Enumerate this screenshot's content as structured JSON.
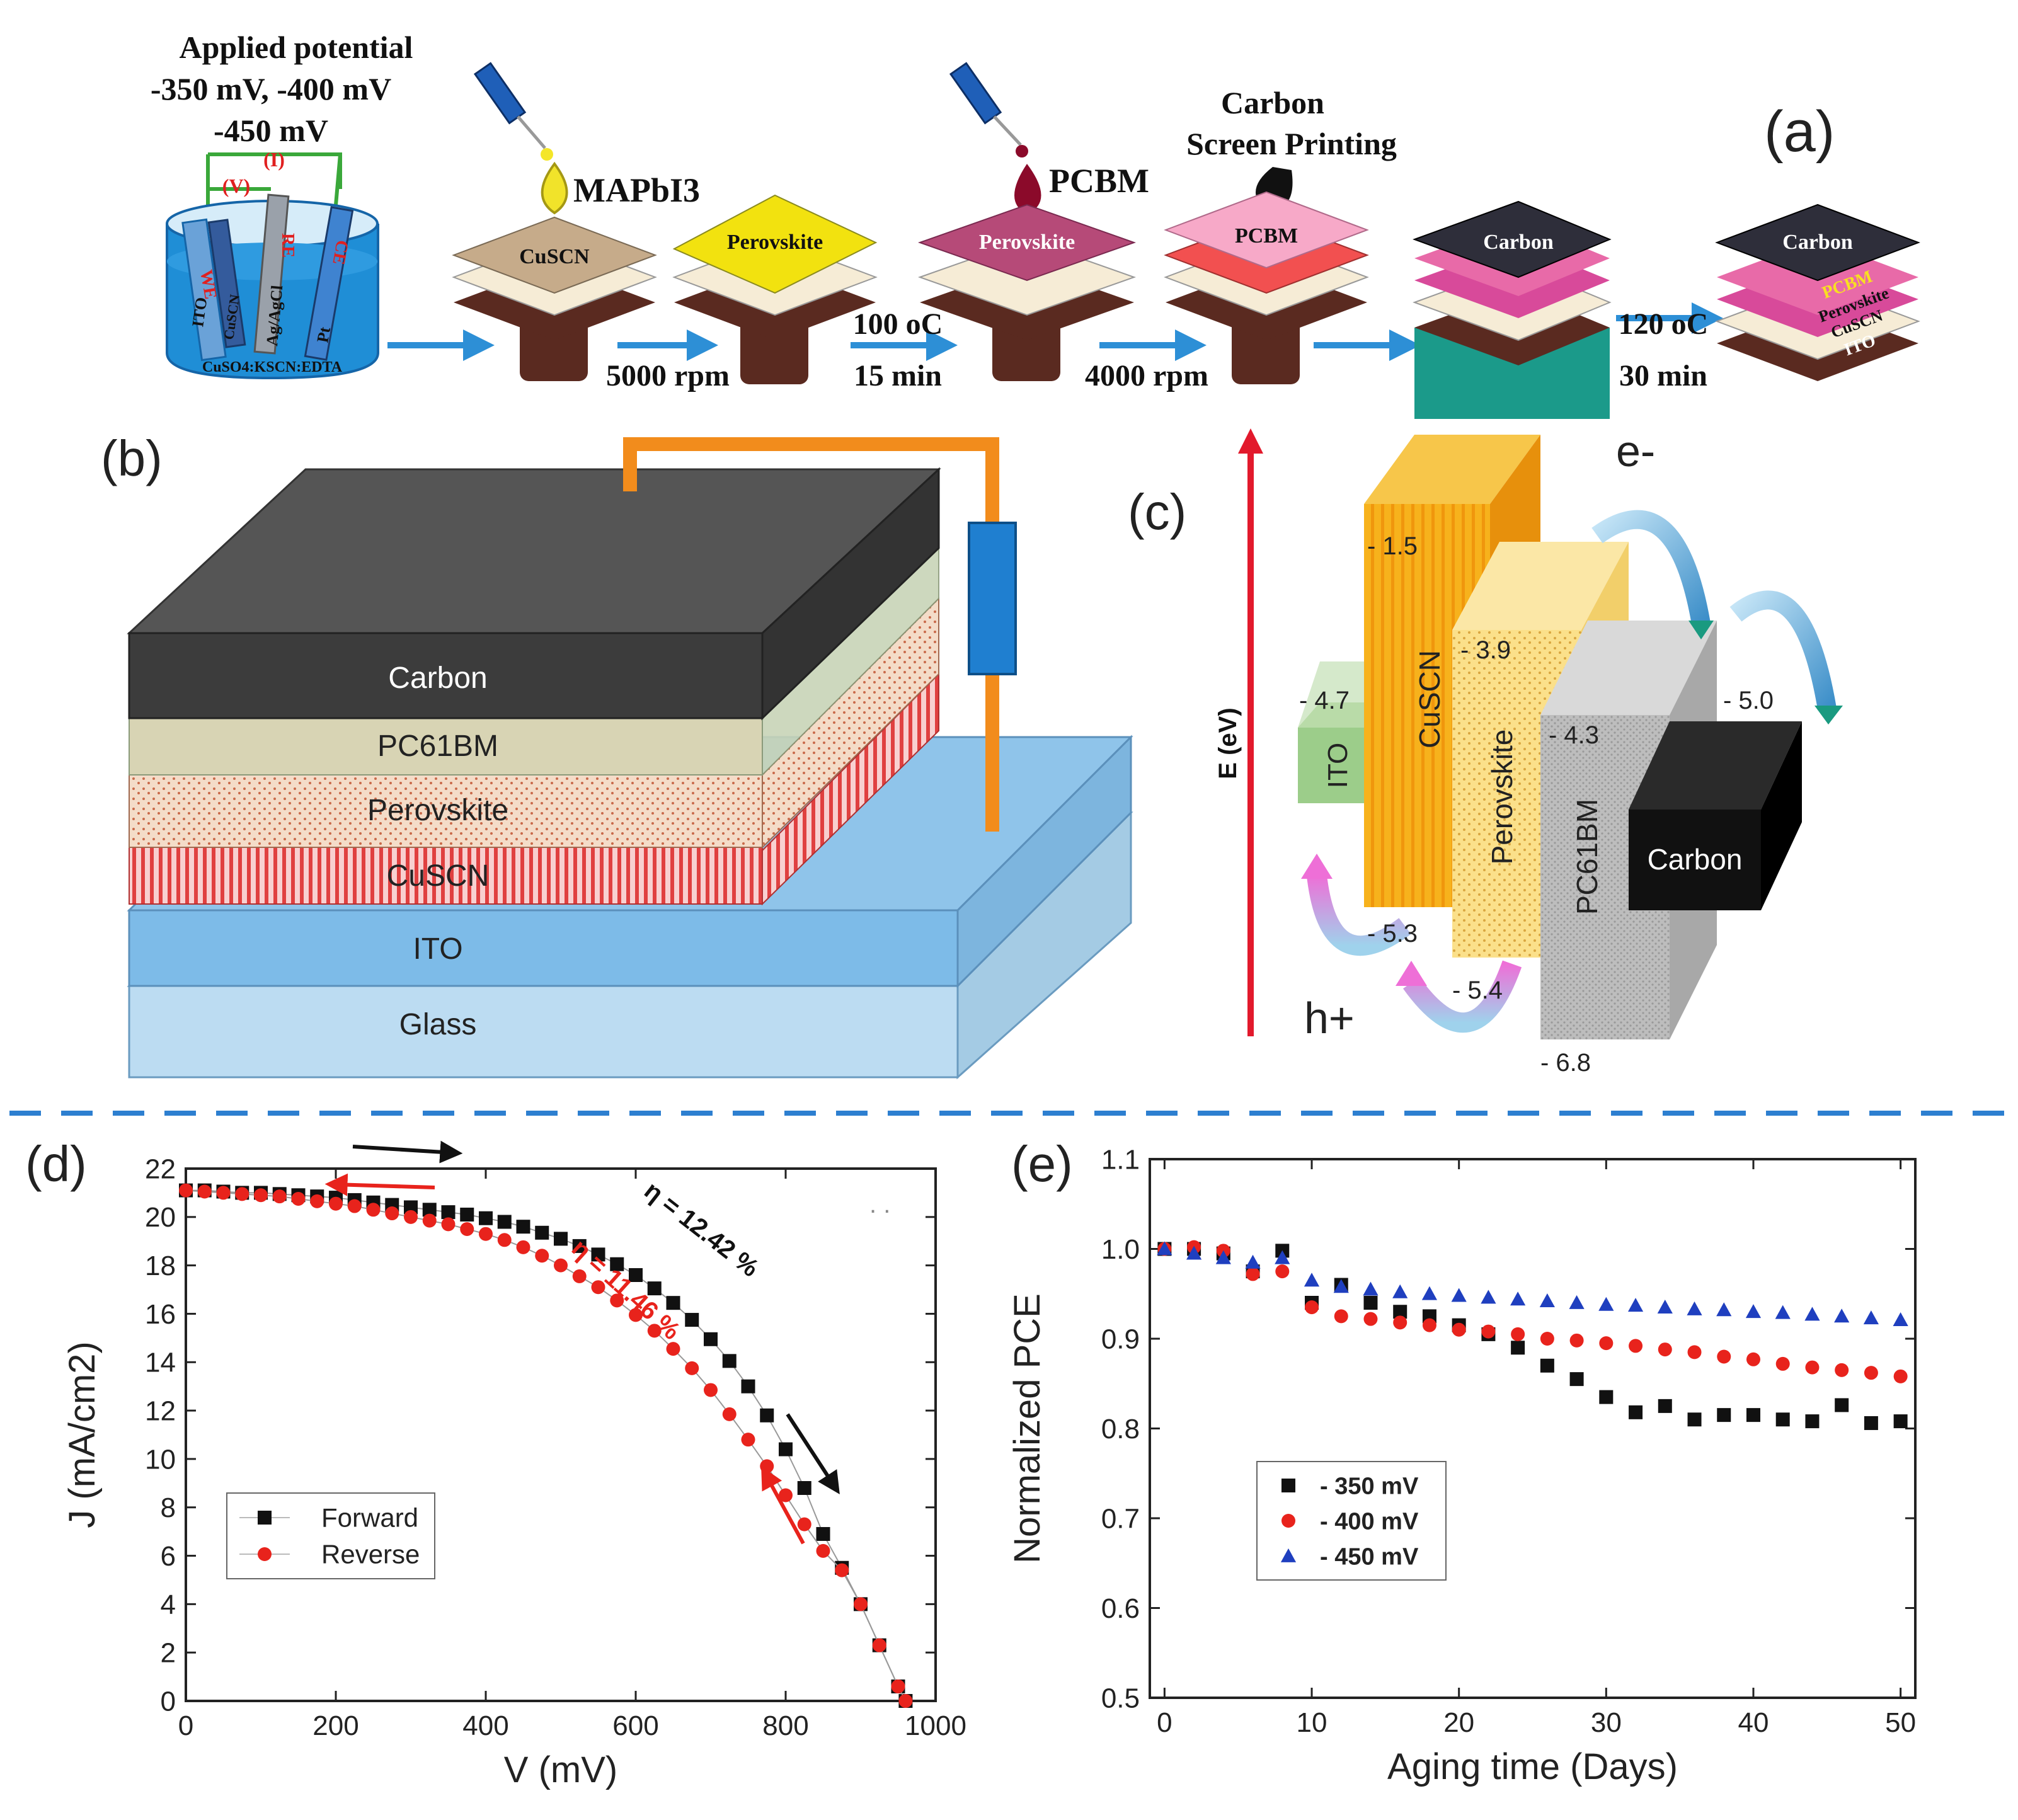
{
  "panel_a": {
    "label": "(a)",
    "applied_potential_title": "Applied potential",
    "potential_line1": "-350 mV, -400 mV",
    "potential_line2": "-450 mV",
    "circuit_current": "(I)",
    "circuit_voltage": "(V)",
    "electrode_we": "WE",
    "electrode_re": "RE",
    "electrode_ce": "CE",
    "label_ito": "ITO",
    "label_cuscn_film": "CuSCN",
    "label_agagcl": "Ag/AgCl",
    "label_pt": "Pt",
    "electrolyte": "CuSO4:KSCN:EDTA",
    "mapbi3": "MAPbI3",
    "pcbm": "PCBM",
    "carbon_title_line1": "Carbon",
    "carbon_title_line2": "Screen Printing",
    "stack1_top": "CuSCN",
    "stack2_top": "Perovskite",
    "stack3_top": "Perovskite",
    "stack4_top": "PCBM",
    "stack5_top": "Carbon",
    "final_stack_top": "Carbon",
    "final_stack_layers": [
      "PCBM",
      "Perovskite",
      "CuSCN",
      "ITO"
    ],
    "step1_speed": "5000 rpm",
    "step2_temp": "100 oC",
    "step2_time": "15 min",
    "step3_speed": "4000 rpm",
    "step4_temp": "120 oC",
    "step4_time": "30 min"
  },
  "panel_b": {
    "label": "(b)",
    "layers": [
      "Carbon",
      "PC61BM",
      "Perovskite",
      "CuSCN",
      "ITO",
      "Glass"
    ]
  },
  "panel_c": {
    "label": "(c)",
    "axis_label": "E (eV)",
    "electron": "e-",
    "hole": "h+",
    "materials": [
      "ITO",
      "CuSCN",
      "Perovskite",
      "PC61BM",
      "Carbon"
    ],
    "levels": [
      "- 1.5",
      "- 3.9",
      "- 4.3",
      "- 4.7",
      "- 5.0",
      "- 5.3",
      "- 5.4",
      "- 6.8"
    ]
  },
  "panel_d": {
    "label": "(d)",
    "eta_forward": "η = 12.42 %",
    "eta_reverse": "η = 11.46 %",
    "dots": ". ."
  },
  "panel_e": {
    "label": "(e)"
  },
  "chart_data": [
    {
      "type": "scatter",
      "title": "",
      "xlabel": "V (mV)",
      "ylabel": "J (mA/cm2)",
      "xlim": [
        0,
        1000
      ],
      "ylim": [
        0,
        22
      ],
      "xticks": [
        0,
        200,
        400,
        600,
        800,
        1000
      ],
      "yticks": [
        0,
        2,
        4,
        6,
        8,
        10,
        12,
        14,
        16,
        18,
        20,
        22
      ],
      "legend": [
        "Forward",
        "Reverse"
      ],
      "legend_position": "bottom-left",
      "series": [
        {
          "name": "Forward",
          "color": "#111111",
          "x": [
            0,
            25,
            50,
            75,
            100,
            125,
            150,
            175,
            200,
            225,
            250,
            275,
            300,
            325,
            350,
            375,
            400,
            425,
            450,
            475,
            500,
            525,
            550,
            575,
            600,
            625,
            650,
            675,
            700,
            725,
            750,
            775,
            800,
            825,
            850,
            875,
            900,
            925,
            950,
            960
          ],
          "y": [
            21.1,
            21.1,
            21.05,
            21.0,
            21.0,
            20.95,
            20.9,
            20.85,
            20.8,
            20.7,
            20.6,
            20.5,
            20.4,
            20.3,
            20.2,
            20.1,
            19.95,
            19.8,
            19.6,
            19.35,
            19.1,
            18.8,
            18.45,
            18.05,
            17.6,
            17.05,
            16.45,
            15.75,
            14.95,
            14.05,
            13.0,
            11.8,
            10.4,
            8.8,
            6.9,
            5.5,
            4.0,
            2.3,
            0.6,
            0.0
          ]
        },
        {
          "name": "Reverse",
          "color": "#e8231c",
          "x": [
            0,
            25,
            50,
            75,
            100,
            125,
            150,
            175,
            200,
            225,
            250,
            275,
            300,
            325,
            350,
            375,
            400,
            425,
            450,
            475,
            500,
            525,
            550,
            575,
            600,
            625,
            650,
            675,
            700,
            725,
            750,
            775,
            800,
            825,
            850,
            875,
            900,
            925,
            950,
            960
          ],
          "y": [
            21.1,
            21.05,
            21.0,
            20.95,
            20.9,
            20.85,
            20.75,
            20.65,
            20.55,
            20.45,
            20.3,
            20.15,
            20.0,
            19.85,
            19.7,
            19.5,
            19.3,
            19.05,
            18.75,
            18.4,
            18.0,
            17.55,
            17.1,
            16.55,
            15.95,
            15.3,
            14.55,
            13.75,
            12.85,
            11.85,
            10.8,
            9.7,
            8.5,
            7.3,
            6.2,
            5.4,
            4.0,
            2.3,
            0.6,
            0.0
          ]
        }
      ]
    },
    {
      "type": "scatter",
      "title": "",
      "xlabel": "Aging time (Days)",
      "ylabel": "Normalized PCE",
      "xlim": [
        -1,
        51
      ],
      "ylim": [
        0.5,
        1.1
      ],
      "xticks": [
        0,
        10,
        20,
        30,
        40,
        50
      ],
      "yticks": [
        0.5,
        0.6,
        0.7,
        0.8,
        0.9,
        1.0,
        1.1
      ],
      "legend": [
        "- 350 mV",
        "- 400 mV",
        "- 450 mV"
      ],
      "legend_position": "bottom-left",
      "series": [
        {
          "name": "- 350 mV",
          "color": "#111111",
          "marker": "square",
          "x": [
            0,
            2,
            4,
            6,
            8,
            10,
            12,
            14,
            16,
            18,
            20,
            22,
            24,
            26,
            28,
            30,
            32,
            34,
            36,
            38,
            40,
            42,
            44,
            46,
            48,
            50
          ],
          "y": [
            1.0,
            1.0,
            0.995,
            0.975,
            0.998,
            0.94,
            0.96,
            0.94,
            0.93,
            0.925,
            0.915,
            0.905,
            0.89,
            0.87,
            0.855,
            0.835,
            0.818,
            0.825,
            0.81,
            0.815,
            0.815,
            0.81,
            0.808,
            0.826,
            0.806,
            0.808
          ]
        },
        {
          "name": "- 400 mV",
          "color": "#e8231c",
          "marker": "circle",
          "x": [
            0,
            2,
            4,
            6,
            8,
            10,
            12,
            14,
            16,
            18,
            20,
            22,
            24,
            26,
            28,
            30,
            32,
            34,
            36,
            38,
            40,
            42,
            44,
            46,
            48,
            50
          ],
          "y": [
            1.0,
            1.002,
            0.998,
            0.972,
            0.975,
            0.935,
            0.925,
            0.922,
            0.918,
            0.915,
            0.91,
            0.908,
            0.905,
            0.9,
            0.898,
            0.895,
            0.892,
            0.888,
            0.885,
            0.88,
            0.877,
            0.872,
            0.868,
            0.865,
            0.862,
            0.858
          ]
        },
        {
          "name": "- 450 mV",
          "color": "#1f3fbf",
          "marker": "triangle",
          "x": [
            0,
            2,
            4,
            6,
            8,
            10,
            12,
            14,
            16,
            18,
            20,
            22,
            24,
            26,
            28,
            30,
            32,
            34,
            36,
            38,
            40,
            42,
            44,
            46,
            48,
            50
          ],
          "y": [
            1.0,
            0.995,
            0.99,
            0.985,
            0.99,
            0.965,
            0.958,
            0.955,
            0.952,
            0.95,
            0.948,
            0.946,
            0.944,
            0.942,
            0.94,
            0.938,
            0.937,
            0.935,
            0.933,
            0.932,
            0.93,
            0.929,
            0.927,
            0.925,
            0.923,
            0.921
          ]
        }
      ]
    }
  ]
}
